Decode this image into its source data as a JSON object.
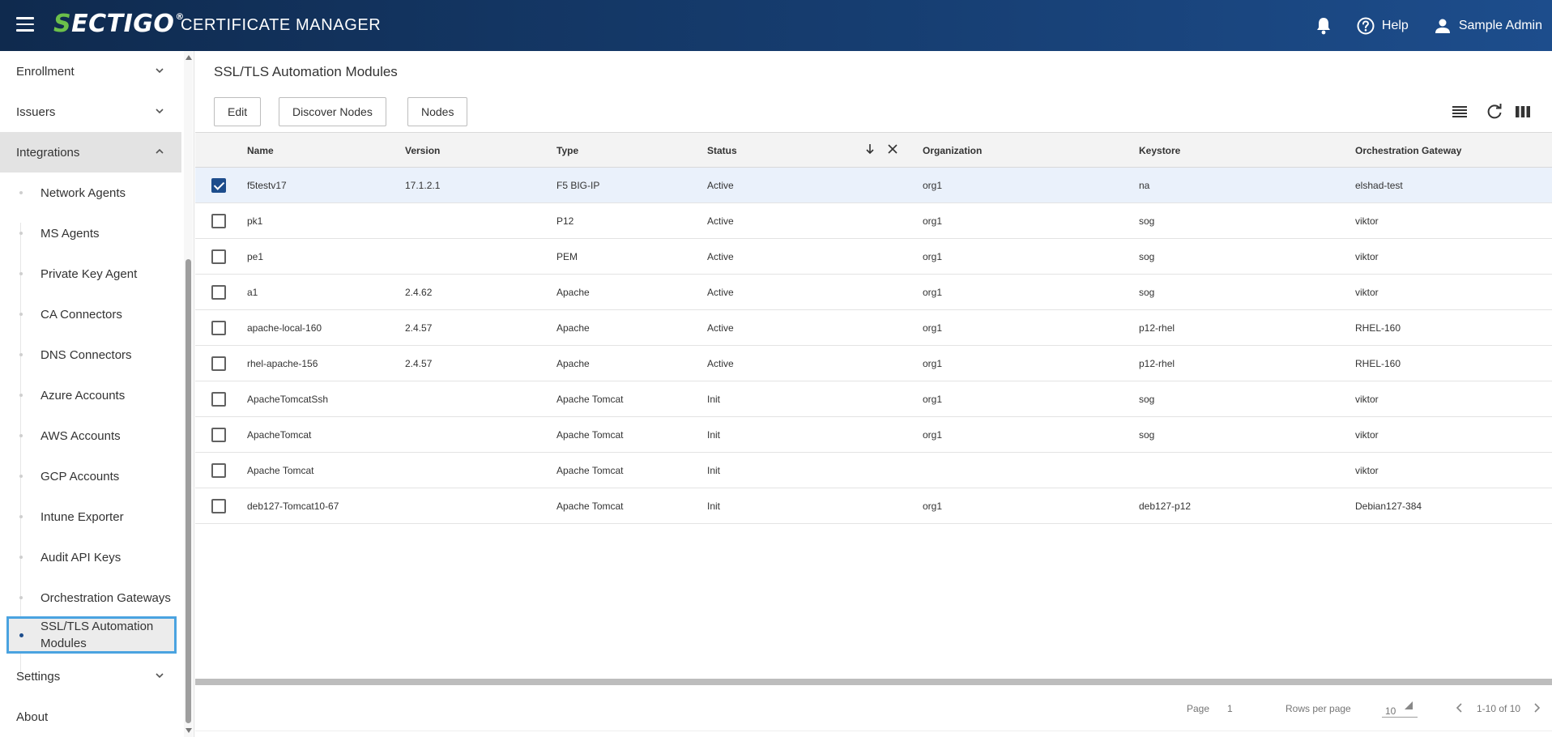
{
  "header": {
    "logo_s": "S",
    "logo_rest": "ECTIGO",
    "logo_reg": "®",
    "app_title": "CERTIFICATE MANAGER",
    "help_label": "Help",
    "user_label": "Sample Admin"
  },
  "sidebar": {
    "groups": [
      {
        "label": "Enrollment"
      },
      {
        "label": "Issuers"
      },
      {
        "label": "Integrations"
      }
    ],
    "sub_items": [
      {
        "label": "Network Agents"
      },
      {
        "label": "MS Agents"
      },
      {
        "label": "Private Key Agent"
      },
      {
        "label": "CA Connectors"
      },
      {
        "label": "DNS Connectors"
      },
      {
        "label": "Azure Accounts"
      },
      {
        "label": "AWS Accounts"
      },
      {
        "label": "GCP Accounts"
      },
      {
        "label": "Intune Exporter"
      },
      {
        "label": "Audit API Keys"
      },
      {
        "label": "Orchestration Gateways"
      },
      {
        "label": "SSL/TLS Automation Modules"
      }
    ],
    "bottom": [
      {
        "label": "Settings"
      },
      {
        "label": "About"
      }
    ]
  },
  "main": {
    "title": "SSL/TLS Automation Modules",
    "toolbar": {
      "edit_label": "Edit",
      "discover_label": "Discover Nodes",
      "nodes_label": "Nodes"
    },
    "columns": [
      "Name",
      "Version",
      "Type",
      "Status",
      "Organization",
      "Keystore",
      "Orchestration Gateway"
    ],
    "rows": [
      {
        "checked": true,
        "name": "f5testv17",
        "version": "17.1.2.1",
        "type": "F5 BIG-IP",
        "status": "Active",
        "org": "org1",
        "keystore": "na",
        "gateway": "elshad-test"
      },
      {
        "checked": false,
        "name": "pk1",
        "version": "",
        "type": "P12",
        "status": "Active",
        "org": "org1",
        "keystore": "sog",
        "gateway": "viktor"
      },
      {
        "checked": false,
        "name": "pe1",
        "version": "",
        "type": "PEM",
        "status": "Active",
        "org": "org1",
        "keystore": "sog",
        "gateway": "viktor"
      },
      {
        "checked": false,
        "name": "a1",
        "version": "2.4.62",
        "type": "Apache",
        "status": "Active",
        "org": "org1",
        "keystore": "sog",
        "gateway": "viktor"
      },
      {
        "checked": false,
        "name": "apache-local-160",
        "version": "2.4.57",
        "type": "Apache",
        "status": "Active",
        "org": "org1",
        "keystore": "p12-rhel",
        "gateway": "RHEL-160"
      },
      {
        "checked": false,
        "name": "rhel-apache-156",
        "version": "2.4.57",
        "type": "Apache",
        "status": "Active",
        "org": "org1",
        "keystore": "p12-rhel",
        "gateway": "RHEL-160"
      },
      {
        "checked": false,
        "name": "ApacheTomcatSsh",
        "version": "",
        "type": "Apache Tomcat",
        "status": "Init",
        "org": "org1",
        "keystore": "sog",
        "gateway": "viktor"
      },
      {
        "checked": false,
        "name": "ApacheTomcat",
        "version": "",
        "type": "Apache Tomcat",
        "status": "Init",
        "org": "org1",
        "keystore": "sog",
        "gateway": "viktor"
      },
      {
        "checked": false,
        "name": "Apache Tomcat",
        "version": "",
        "type": "Apache Tomcat",
        "status": "Init",
        "org": "",
        "keystore": "",
        "gateway": "viktor"
      },
      {
        "checked": false,
        "name": "deb127-Tomcat10-67",
        "version": "",
        "type": "Apache Tomcat",
        "status": "Init",
        "org": "org1",
        "keystore": "deb127-p12",
        "gateway": "Debian127-384"
      }
    ],
    "footer": {
      "page_label": "Page",
      "page_value": "1",
      "rows_label": "Rows per page",
      "rows_value": "10",
      "range": "1-10 of 10"
    }
  },
  "colors": {
    "header_start": "#0f2a4e",
    "header_end": "#1d4d8c",
    "logo_accent": "#6cc04a",
    "active_border": "#4aa3e0",
    "checkbox_checked": "#1d4d8c"
  }
}
